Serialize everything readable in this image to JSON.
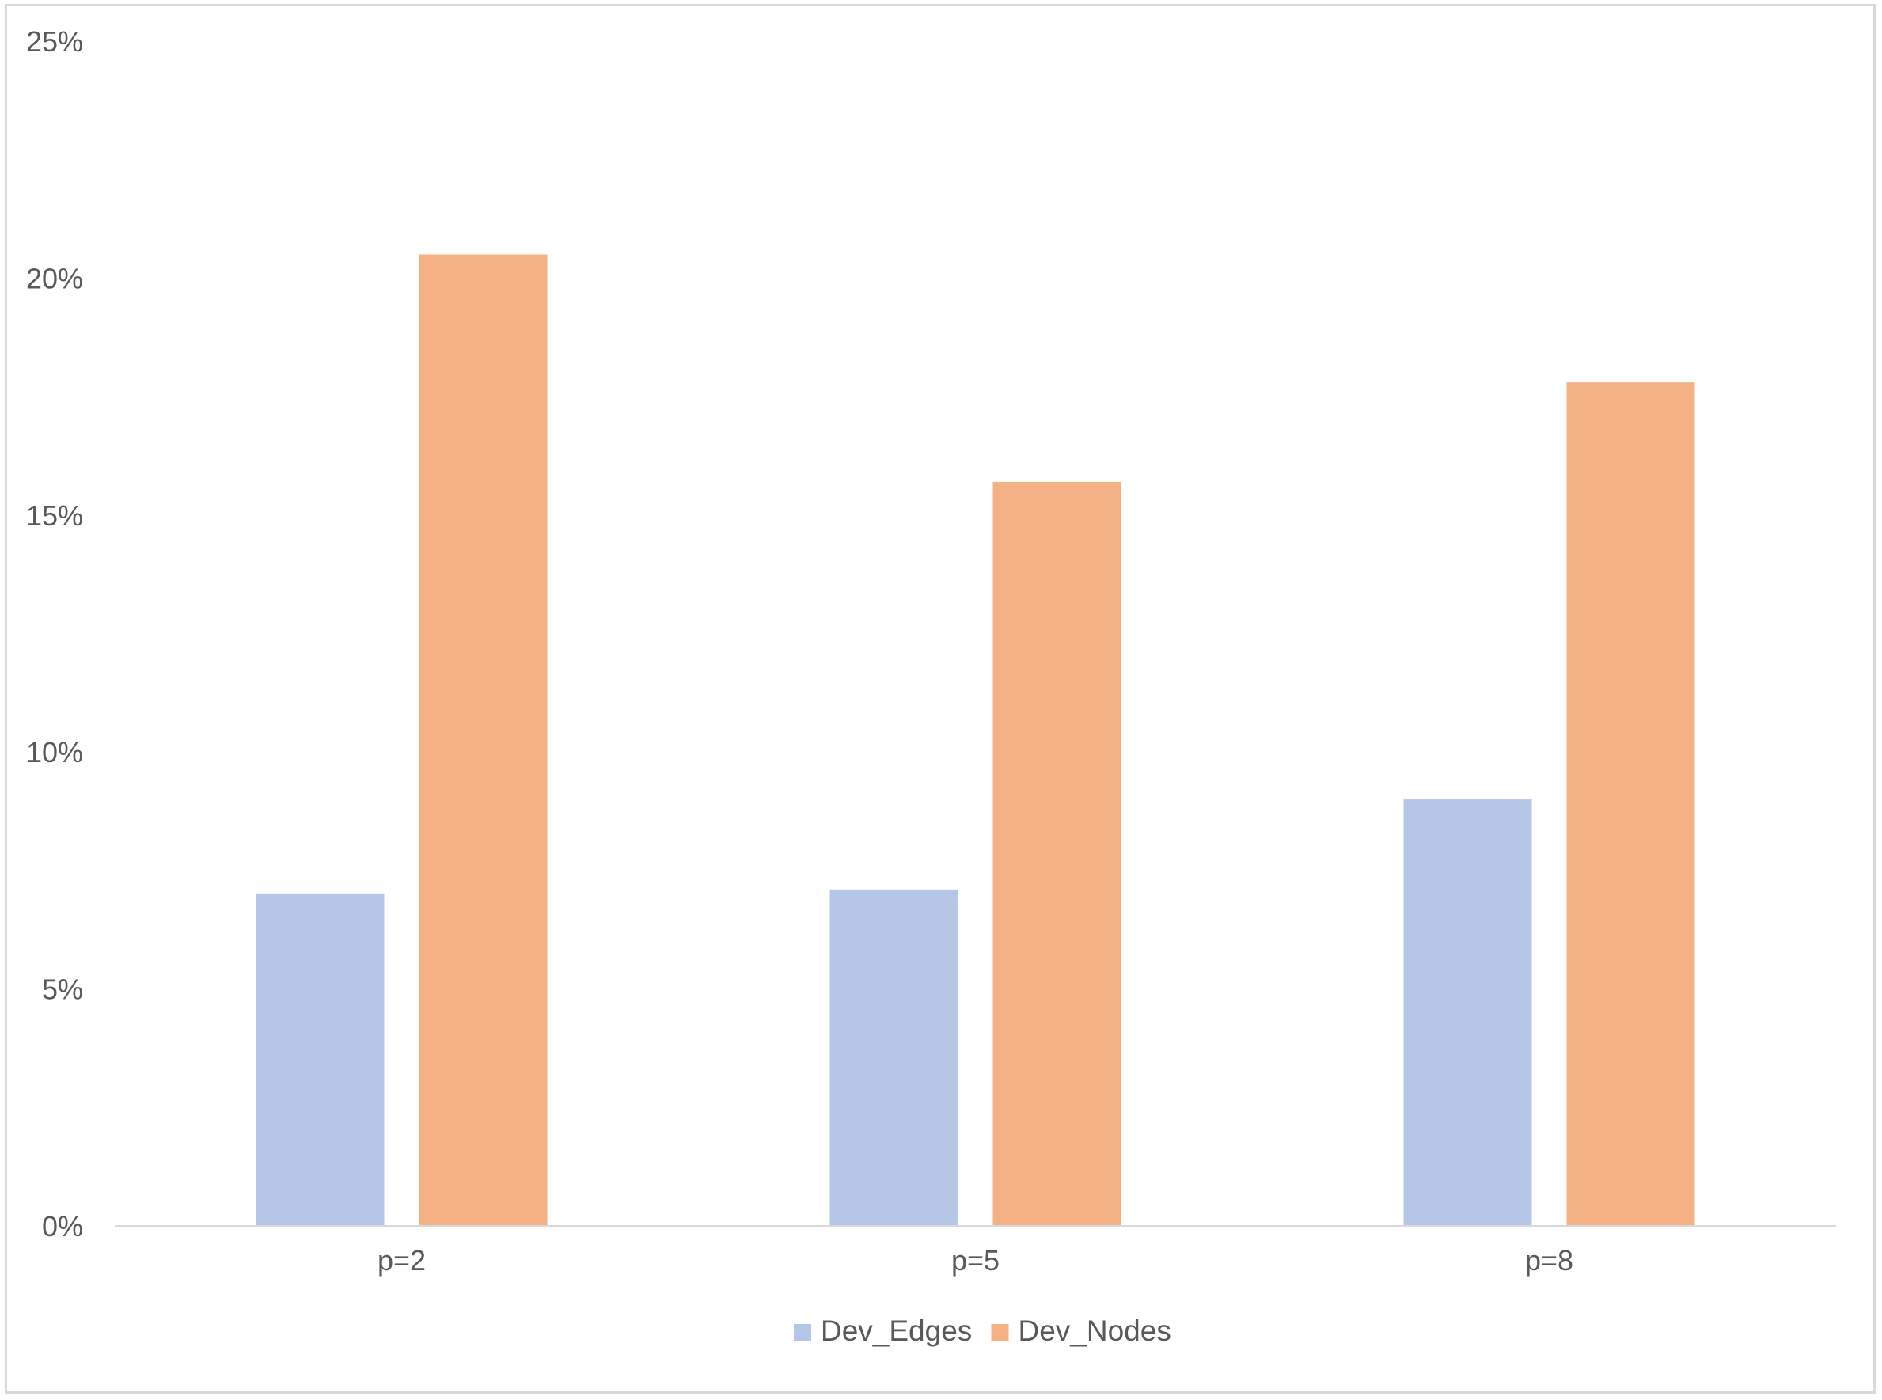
{
  "chart_data": {
    "type": "bar",
    "title": "",
    "xlabel": "",
    "ylabel": "",
    "categories": [
      "p=2",
      "p=5",
      "p=8"
    ],
    "series": [
      {
        "name": "Dev_Edges",
        "color": "#B4C7E7",
        "values": [
          7.0,
          7.1,
          9.0
        ]
      },
      {
        "name": "Dev_Nodes",
        "color": "#F4B183",
        "values": [
          20.5,
          15.7,
          17.8
        ]
      }
    ],
    "ylim": [
      0,
      25
    ],
    "yticks": [
      0,
      5,
      10,
      15,
      20,
      25
    ],
    "ytick_labels": [
      "0%",
      "5%",
      "10%",
      "15%",
      "20%",
      "25%"
    ],
    "grid": false,
    "legend_position": "bottom",
    "axis_color": "#D9D9D9",
    "text_color": "#595959"
  }
}
